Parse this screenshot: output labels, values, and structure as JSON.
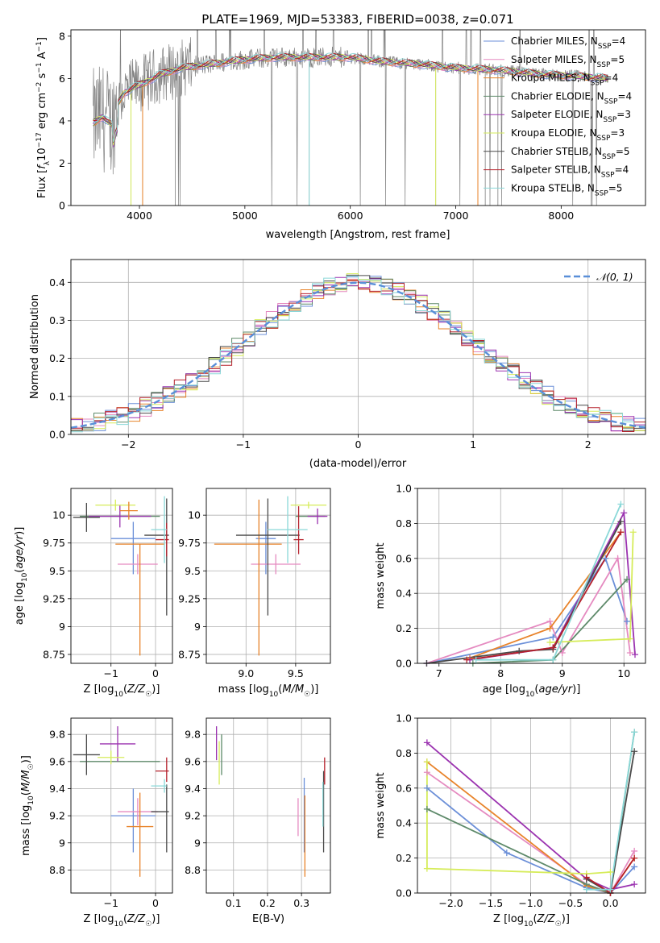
{
  "title": "PLATE=1969, MJD=53383, FIBERID=0038, z=0.071",
  "colors": {
    "Chabrier MILES": "#6b8fd8",
    "Salpeter MILES": "#e58ac0",
    "Kroupa MILES": "#e8832a",
    "Chabrier ELODIE": "#5e8a6a",
    "Salpeter ELODIE": "#9b33b0",
    "Kroupa ELODIE": "#d6ec5a",
    "Chabrier STELIB": "#4a4a4a",
    "Salpeter STELIB": "#b5202a",
    "Kroupa STELIB": "#8ad8d8",
    "data": "#808080",
    "normal": "#5a8fd8"
  },
  "chart_data": [
    {
      "id": "spectrum",
      "type": "line",
      "xlabel": "wavelength [Angstrom, rest frame]",
      "ylabel_parts": [
        "Flux [",
        "f",
        "λ",
        "10",
        "−17",
        " erg cm",
        "−2",
        " s",
        "−1",
        " A",
        "−1",
        "]"
      ],
      "xlim": [
        3350,
        8800
      ],
      "ylim": [
        0,
        8.3
      ],
      "xticks": [
        4000,
        5000,
        6000,
        7000,
        8000
      ],
      "yticks": [
        0,
        2,
        4,
        6,
        8
      ],
      "legend_position": "right",
      "legend": [
        {
          "model": "Chabrier MILES",
          "nssp": "4"
        },
        {
          "model": "Salpeter MILES",
          "nssp": "5"
        },
        {
          "model": "Kroupa MILES",
          "nssp": "4"
        },
        {
          "model": "Chabrier ELODIE",
          "nssp": "4"
        },
        {
          "model": "Salpeter ELODIE",
          "nssp": "3"
        },
        {
          "model": "Kroupa ELODIE",
          "nssp": "3"
        },
        {
          "model": "Chabrier STELIB",
          "nssp": "5"
        },
        {
          "model": "Salpeter STELIB",
          "nssp": "4"
        },
        {
          "model": "Kroupa STELIB",
          "nssp": "5"
        }
      ],
      "continuum": [
        [
          3560,
          3.9
        ],
        [
          3650,
          4.2
        ],
        [
          3740,
          3.8
        ],
        [
          3780,
          4.7
        ],
        [
          3850,
          5.3
        ],
        [
          3950,
          5.6
        ],
        [
          4050,
          5.8
        ],
        [
          4200,
          6.2
        ],
        [
          4400,
          6.5
        ],
        [
          4700,
          6.7
        ],
        [
          5000,
          6.9
        ],
        [
          5300,
          7.0
        ],
        [
          5600,
          7.0
        ],
        [
          6000,
          7.0
        ],
        [
          6300,
          6.8
        ],
        [
          6600,
          6.7
        ],
        [
          7000,
          6.5
        ],
        [
          7400,
          6.4
        ],
        [
          7800,
          6.2
        ],
        [
          8200,
          6.1
        ],
        [
          8450,
          6.0
        ]
      ]
    },
    {
      "id": "residuals",
      "type": "histogram",
      "xlabel": "(data-model)/error",
      "ylabel": "Normed distribution",
      "xlim": [
        -2.5,
        2.5
      ],
      "ylim": [
        0,
        0.46
      ],
      "xticks": [
        -2,
        -1,
        0,
        1,
        2
      ],
      "xtick_labels": [
        "−2",
        "−1",
        "0",
        "1",
        "2"
      ],
      "yticks": [
        0,
        0.1,
        0.2,
        0.3,
        0.4
      ],
      "ytick_labels": [
        "0.0",
        "0.1",
        "0.2",
        "0.3",
        "0.4"
      ],
      "bin_width": 0.1,
      "legend": "𝒩(0, 1)",
      "grid": true
    },
    {
      "id": "age-vs-Z",
      "type": "errorbar",
      "xlabel": "Z [log₁₀(Z/Z☉)]",
      "ylabel": "age  [log₁₀(age/yr)]",
      "xlim": [
        -1.9,
        0.38
      ],
      "ylim": [
        8.67,
        10.24
      ],
      "xticks": [
        -1,
        0
      ],
      "xtick_labels": [
        "−1",
        "0"
      ],
      "yticks": [
        8.75,
        9.0,
        9.25,
        9.5,
        9.75,
        10.0
      ],
      "points": [
        {
          "model": "Chabrier MILES",
          "x": -0.5,
          "xe": [
            0.5,
            0.5
          ],
          "y": 9.79,
          "ye": [
            0.32,
            0.15
          ]
        },
        {
          "model": "Salpeter MILES",
          "x": -0.4,
          "xe": [
            0.45,
            0.45
          ],
          "y": 9.56,
          "ye": [
            0.09,
            0.09
          ]
        },
        {
          "model": "Kroupa MILES",
          "x": -0.35,
          "xe": [
            0.55,
            0.55
          ],
          "y": 9.74,
          "ye": [
            1.0,
            0.0
          ]
        },
        {
          "model": "Chabrier ELODIE",
          "x": -0.8,
          "xe": [
            0.9,
            0.9
          ],
          "y": 9.99,
          "ye": [
            0.0,
            0.0
          ]
        },
        {
          "model": "Salpeter ELODIE",
          "x": -0.8,
          "xe": [
            0.7,
            0.7
          ],
          "y": 9.99,
          "ye": [
            0.1,
            0.1
          ]
        },
        {
          "model": "Kroupa ELODIE",
          "x": -0.9,
          "xe": [
            0.45,
            0.45
          ],
          "y": 10.09,
          "ye": [
            0.05,
            0.05
          ]
        },
        {
          "model": "Chabrier STELIB",
          "x": 0.25,
          "xe": [
            0.5,
            0.05
          ],
          "y": 9.82,
          "ye": [
            0.72,
            0.33
          ]
        },
        {
          "model": "Salpeter STELIB",
          "x": 0.25,
          "xe": [
            0.25,
            0.05
          ],
          "y": 9.78,
          "ye": [
            0.15,
            0.15
          ]
        },
        {
          "model": "Kroupa STELIB",
          "x": 0.2,
          "xe": [
            0.3,
            0.05
          ],
          "y": 9.87,
          "ye": [
            0.3,
            0.3
          ]
        },
        {
          "model": "Chabrier STELIB",
          "x": -1.55,
          "xe": [
            0.3,
            0.3
          ],
          "y": 9.98,
          "ye": [
            0.13,
            0.13
          ]
        },
        {
          "model": "Kroupa MILES",
          "x": -0.6,
          "xe": [
            0.2,
            0.2
          ],
          "y": 10.04,
          "ye": [
            0.08,
            0.08
          ]
        }
      ]
    },
    {
      "id": "age-vs-mass",
      "type": "errorbar",
      "xlabel": "mass [log₁₀(M/M☉)]",
      "ylabel": "",
      "xlim": [
        8.6,
        9.85
      ],
      "ylim": [
        8.67,
        10.24
      ],
      "xticks": [
        9.0,
        9.5
      ],
      "xtick_labels": [
        "9.0",
        "9.5"
      ],
      "yticks": [
        8.75,
        9.0,
        9.25,
        9.5,
        9.75,
        10.0
      ],
      "points": [
        {
          "model": "Chabrier MILES",
          "x": 9.2,
          "xe": [
            0.1,
            0.1
          ],
          "y": 9.79,
          "ye": [
            0.32,
            0.15
          ]
        },
        {
          "model": "Salpeter MILES",
          "x": 9.3,
          "xe": [
            0.25,
            0.25
          ],
          "y": 9.56,
          "ye": [
            0.09,
            0.09
          ]
        },
        {
          "model": "Kroupa MILES",
          "x": 9.13,
          "xe": [
            0.45,
            0.23
          ],
          "y": 9.74,
          "ye": [
            1.0,
            0.4
          ]
        },
        {
          "model": "Chabrier ELODIE",
          "x": 9.65,
          "xe": [
            0.15,
            0.15
          ],
          "y": 9.99,
          "ye": [
            0.0,
            0.0
          ]
        },
        {
          "model": "Salpeter ELODIE",
          "x": 9.72,
          "xe": [
            0.1,
            0.1
          ],
          "y": 9.99,
          "ye": [
            0.07,
            0.07
          ]
        },
        {
          "model": "Kroupa ELODIE",
          "x": 9.63,
          "xe": [
            0.18,
            0.18
          ],
          "y": 10.09,
          "ye": [
            0.03,
            0.03
          ]
        },
        {
          "model": "Chabrier STELIB",
          "x": 9.22,
          "xe": [
            0.32,
            0.32
          ],
          "y": 9.82,
          "ye": [
            0.72,
            0.33
          ]
        },
        {
          "model": "Salpeter STELIB",
          "x": 9.53,
          "xe": [
            0.05,
            0.05
          ],
          "y": 9.78,
          "ye": [
            0.13,
            0.3
          ]
        },
        {
          "model": "Kroupa STELIB",
          "x": 9.42,
          "xe": [
            0.2,
            0.2
          ],
          "y": 9.87,
          "ye": [
            0.3,
            0.3
          ]
        }
      ]
    },
    {
      "id": "mass-weight-vs-age",
      "type": "line",
      "xlabel": "age  [log₁₀(age/yr)]",
      "ylabel": "mass weight",
      "xlim": [
        6.65,
        10.35
      ],
      "ylim": [
        0,
        1.0
      ],
      "xticks": [
        7,
        8,
        9,
        10
      ],
      "yticks": [
        0.0,
        0.2,
        0.4,
        0.6,
        0.8,
        1.0
      ],
      "series": [
        {
          "model": "Chabrier MILES",
          "x": [
            6.8,
            8.85,
            9.7,
            10.05
          ],
          "y": [
            0.0,
            0.15,
            0.6,
            0.24
          ]
        },
        {
          "model": "Salpeter MILES",
          "x": [
            6.8,
            8.8,
            9.0,
            9.9,
            10.1
          ],
          "y": [
            0.0,
            0.24,
            0.06,
            0.6,
            0.06
          ]
        },
        {
          "model": "Kroupa MILES",
          "x": [
            7.5,
            8.8,
            9.95
          ],
          "y": [
            0.03,
            0.2,
            0.75
          ]
        },
        {
          "model": "Chabrier ELODIE",
          "x": [
            7.55,
            8.85,
            10.05
          ],
          "y": [
            0.0,
            0.02,
            0.48
          ]
        },
        {
          "model": "Salpeter ELODIE",
          "x": [
            7.5,
            8.85,
            10.0,
            10.18
          ],
          "y": [
            0.02,
            0.09,
            0.86,
            0.05
          ]
        },
        {
          "model": "Kroupa ELODIE",
          "x": [
            8.8,
            10.1,
            10.15
          ],
          "y": [
            0.12,
            0.14,
            0.75
          ]
        },
        {
          "model": "Chabrier STELIB",
          "x": [
            6.8,
            8.3,
            8.85,
            9.95
          ],
          "y": [
            0.0,
            0.07,
            0.08,
            0.81
          ]
        },
        {
          "model": "Salpeter STELIB",
          "x": [
            7.45,
            8.85,
            9.95
          ],
          "y": [
            0.02,
            0.09,
            0.75
          ]
        },
        {
          "model": "Kroupa STELIB",
          "x": [
            7.6,
            8.85,
            9.95
          ],
          "y": [
            0.02,
            0.02,
            0.91
          ]
        }
      ]
    },
    {
      "id": "mass-vs-Z",
      "type": "errorbar",
      "xlabel": "Z [log₁₀(Z/Z☉)]",
      "ylabel": "mass [log₁₀(M/M☉)]",
      "xlim": [
        -1.9,
        0.38
      ],
      "ylim": [
        8.63,
        9.92
      ],
      "xticks": [
        -1,
        0
      ],
      "xtick_labels": [
        "−1",
        "0"
      ],
      "yticks": [
        8.8,
        9.0,
        9.2,
        9.4,
        9.6,
        9.8
      ],
      "points": [
        {
          "model": "Chabrier MILES",
          "x": -0.5,
          "xe": [
            0.5,
            0.5
          ],
          "y": 9.2,
          "ye": [
            0.27,
            0.2
          ]
        },
        {
          "model": "Salpeter MILES",
          "x": -0.4,
          "xe": [
            0.45,
            0.45
          ],
          "y": 9.23,
          "ye": [
            0.1,
            0.1
          ]
        },
        {
          "model": "Kroupa MILES",
          "x": -0.35,
          "xe": [
            0.3,
            0.3
          ],
          "y": 9.12,
          "ye": [
            0.37,
            0.25
          ]
        },
        {
          "model": "Chabrier ELODIE",
          "x": -0.8,
          "xe": [
            0.9,
            0.9
          ],
          "y": 9.6,
          "ye": [
            0.0,
            0.0
          ]
        },
        {
          "model": "Salpeter ELODIE",
          "x": -0.85,
          "xe": [
            0.4,
            0.4
          ],
          "y": 9.73,
          "ye": [
            0.13,
            0.13
          ]
        },
        {
          "model": "Kroupa ELODIE",
          "x": -1.0,
          "xe": [
            0.3,
            0.3
          ],
          "y": 9.63,
          "ye": [
            0.05,
            0.05
          ]
        },
        {
          "model": "Chabrier STELIB",
          "x": 0.25,
          "xe": [
            0.35,
            0.05
          ],
          "y": 9.23,
          "ye": [
            0.3,
            0.2
          ]
        },
        {
          "model": "Salpeter STELIB",
          "x": 0.25,
          "xe": [
            0.25,
            0.05
          ],
          "y": 9.53,
          "ye": [
            0.08,
            0.1
          ]
        },
        {
          "model": "Kroupa STELIB",
          "x": 0.2,
          "xe": [
            0.3,
            0.05
          ],
          "y": 9.42,
          "ye": [
            0.05,
            0.05
          ]
        },
        {
          "model": "Chabrier STELIB",
          "x": -1.55,
          "xe": [
            0.3,
            0.3
          ],
          "y": 9.65,
          "ye": [
            0.15,
            0.15
          ]
        }
      ]
    },
    {
      "id": "mass-vs-ebv",
      "type": "errorbar",
      "xlabel": "E(B-V)",
      "ylabel": "",
      "xlim": [
        0.02,
        0.385
      ],
      "ylim": [
        8.63,
        9.92
      ],
      "xticks": [
        0.1,
        0.2,
        0.3
      ],
      "xtick_labels": [
        "0.1",
        "0.2",
        "0.3"
      ],
      "yticks": [
        8.8,
        9.0,
        9.2,
        9.4,
        9.6,
        9.8
      ],
      "points": [
        {
          "model": "Chabrier MILES",
          "x": 0.308,
          "xe": [
            0,
            0
          ],
          "y": 9.2,
          "ye": [
            0.27,
            0.28
          ]
        },
        {
          "model": "Salpeter MILES",
          "x": 0.29,
          "xe": [
            0,
            0
          ],
          "y": 9.23,
          "ye": [
            0.18,
            0.1
          ]
        },
        {
          "model": "Kroupa MILES",
          "x": 0.31,
          "xe": [
            0,
            0
          ],
          "y": 9.12,
          "ye": [
            0.37,
            0.23
          ]
        },
        {
          "model": "Chabrier ELODIE",
          "x": 0.065,
          "xe": [
            0,
            0
          ],
          "y": 9.6,
          "ye": [
            0.1,
            0.2
          ]
        },
        {
          "model": "Salpeter ELODIE",
          "x": 0.05,
          "xe": [
            0,
            0
          ],
          "y": 9.73,
          "ye": [
            0.12,
            0.13
          ]
        },
        {
          "model": "Kroupa ELODIE",
          "x": 0.058,
          "xe": [
            0,
            0
          ],
          "y": 9.6,
          "ye": [
            0.17,
            0.15
          ]
        },
        {
          "model": "Chabrier STELIB",
          "x": 0.365,
          "xe": [
            0,
            0
          ],
          "y": 9.23,
          "ye": [
            0.3,
            0.3
          ]
        },
        {
          "model": "Salpeter STELIB",
          "x": 0.368,
          "xe": [
            0,
            0
          ],
          "y": 9.53,
          "ye": [
            0.1,
            0.1
          ]
        },
        {
          "model": "Kroupa STELIB",
          "x": 0.363,
          "xe": [
            0,
            0
          ],
          "y": 9.2,
          "ye": [
            0.08,
            0.25
          ]
        }
      ]
    },
    {
      "id": "mass-weight-vs-Z",
      "type": "line",
      "xlabel": "Z [log₁₀(Z/Z☉)]",
      "ylabel": "mass weight",
      "xlim": [
        -2.42,
        0.44
      ],
      "ylim": [
        0,
        1.0
      ],
      "xticks": [
        -2.0,
        -1.5,
        -1.0,
        -0.5,
        0.0
      ],
      "xtick_labels": [
        "−2.0",
        "−1.5",
        "−1.0",
        "−0.5",
        "0.0"
      ],
      "yticks": [
        0.0,
        0.2,
        0.4,
        0.6,
        0.8,
        1.0
      ],
      "series": [
        {
          "model": "Chabrier MILES",
          "x": [
            -2.3,
            -1.3,
            -0.3,
            0.0,
            0.3
          ],
          "y": [
            0.6,
            0.23,
            0.03,
            0.0,
            0.15
          ]
        },
        {
          "model": "Salpeter MILES",
          "x": [
            -2.3,
            -0.3,
            0.0,
            0.3
          ],
          "y": [
            0.69,
            0.05,
            0.0,
            0.24
          ]
        },
        {
          "model": "Kroupa MILES",
          "x": [
            -2.3,
            -0.3,
            0.0,
            0.3
          ],
          "y": [
            0.75,
            0.04,
            0.0,
            0.2
          ]
        },
        {
          "model": "Chabrier ELODIE",
          "x": [
            -2.3,
            -0.3,
            0.0,
            0.3
          ],
          "y": [
            0.48,
            0.05,
            0.0,
            0.92
          ]
        },
        {
          "model": "Salpeter ELODIE",
          "x": [
            -2.3,
            -0.3,
            0.0,
            0.3
          ],
          "y": [
            0.86,
            0.08,
            0.02,
            0.05
          ]
        },
        {
          "model": "Kroupa ELODIE",
          "x": [
            -2.3,
            -2.3,
            -0.3,
            0.0
          ],
          "y": [
            0.75,
            0.14,
            0.11,
            0.12
          ]
        },
        {
          "model": "Chabrier STELIB",
          "x": [
            -0.3,
            0.0,
            0.3
          ],
          "y": [
            0.08,
            0.0,
            0.81
          ]
        },
        {
          "model": "Salpeter STELIB",
          "x": [
            -0.3,
            0.0,
            0.3
          ],
          "y": [
            0.09,
            0.0,
            0.2
          ]
        },
        {
          "model": "Kroupa STELIB",
          "x": [
            -0.3,
            0.0,
            0.3
          ],
          "y": [
            0.02,
            0.02,
            0.92
          ]
        }
      ]
    }
  ]
}
